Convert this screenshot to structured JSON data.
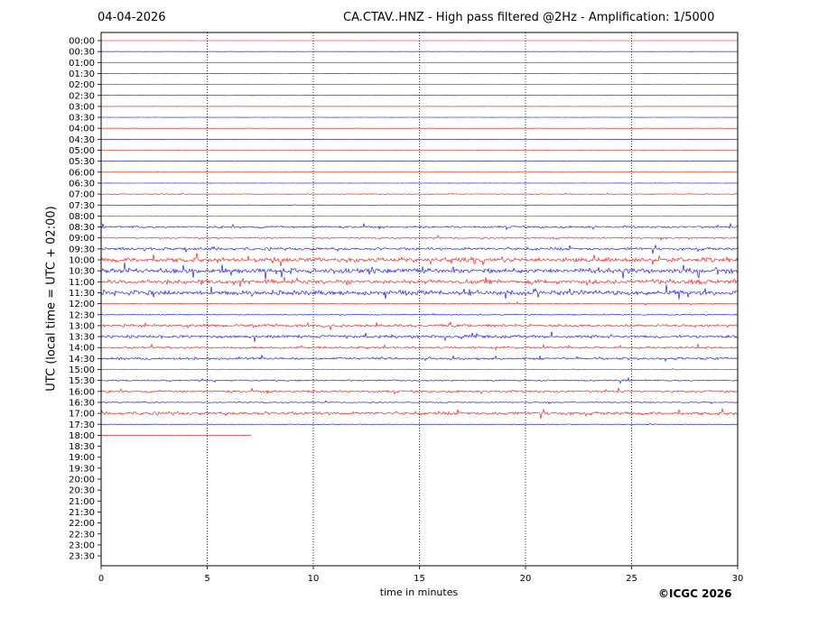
{
  "header": {
    "date": "04-04-2026",
    "title": "CA.CTAV..HNZ - High pass filtered @2Hz - Amplification: 1/5000"
  },
  "footer": {
    "copyright": "©ICGC 2026"
  },
  "colors": {
    "even_trace": "#ff0000",
    "odd_trace": "#0000ff",
    "grid": "#000000"
  },
  "chart_data": {
    "type": "line",
    "title": "CA.CTAV..HNZ - High pass filtered @2Hz - Amplification: 1/5000",
    "xlabel": "time in minutes",
    "ylabel": "UTC (local time = UTC + 02:00)",
    "xlim": [
      0,
      30
    ],
    "xticks": [
      0,
      5,
      10,
      15,
      20,
      25,
      30
    ],
    "yticks": [
      "00:00",
      "00:30",
      "01:00",
      "01:30",
      "02:00",
      "02:30",
      "03:00",
      "03:30",
      "04:00",
      "04:30",
      "05:00",
      "05:30",
      "06:00",
      "06:30",
      "07:00",
      "07:30",
      "08:00",
      "08:30",
      "09:00",
      "09:30",
      "10:00",
      "10:30",
      "11:00",
      "11:30",
      "12:00",
      "12:30",
      "13:00",
      "13:30",
      "14:00",
      "14:30",
      "15:00",
      "15:30",
      "16:00",
      "16:30",
      "17:00",
      "17:30",
      "18:00",
      "18:30",
      "19:00",
      "19:30",
      "20:00",
      "20:30",
      "21:00",
      "21:30",
      "22:00",
      "22:30",
      "23:00",
      "23:30"
    ],
    "grid": "vertical dotted every 5 minutes",
    "last_trace_end_minute": 7.1,
    "trace_colors": "alternating red (on the hour) and blue (on the half hour)",
    "activity_level": [
      0.02,
      0.01,
      0.01,
      0.02,
      0.05,
      0.02,
      0.03,
      0.01,
      0.03,
      0.02,
      0.04,
      0.04,
      0.05,
      0.06,
      0.15,
      0.05,
      0.08,
      0.4,
      0.3,
      0.5,
      0.8,
      0.9,
      0.8,
      0.85,
      0.15,
      0.2,
      0.5,
      0.55,
      0.4,
      0.45,
      0.15,
      0.3,
      0.4,
      0.2,
      0.55,
      0.1,
      0.05
    ]
  }
}
